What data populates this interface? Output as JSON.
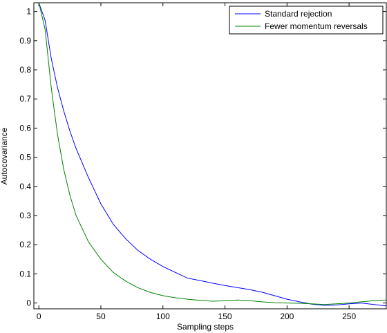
{
  "chart_data": {
    "type": "line",
    "xlabel": "Sampling steps",
    "ylabel": "Autocovariance",
    "xlim": [
      -4,
      280
    ],
    "ylim": [
      -0.02,
      1.03
    ],
    "xticks": [
      0,
      50,
      100,
      150,
      200,
      250
    ],
    "yticks": [
      0,
      0.1,
      0.2,
      0.3,
      0.4,
      0.5,
      0.6,
      0.7,
      0.8,
      0.9,
      1
    ],
    "ytick_labels": [
      "0",
      "0.1",
      "0.2",
      "0.3",
      "0.4",
      "0.5",
      "0.6",
      "0.7",
      "0.8",
      "0.9",
      "1"
    ],
    "grid": false,
    "legend_position": "top-right",
    "series": [
      {
        "name": "Standard rejection",
        "color": "#0000ff",
        "x": [
          0,
          5,
          10,
          15,
          20,
          25,
          30,
          40,
          50,
          60,
          70,
          80,
          90,
          100,
          110,
          120,
          130,
          140,
          150,
          160,
          170,
          180,
          190,
          200,
          210,
          220,
          230,
          240,
          250,
          260,
          270,
          280
        ],
        "y": [
          1.03,
          0.97,
          0.84,
          0.74,
          0.66,
          0.59,
          0.53,
          0.43,
          0.34,
          0.27,
          0.22,
          0.18,
          0.15,
          0.125,
          0.105,
          0.085,
          0.077,
          0.068,
          0.06,
          0.053,
          0.046,
          0.037,
          0.025,
          0.013,
          0.004,
          -0.004,
          -0.008,
          -0.007,
          -0.003,
          0.0,
          -0.005,
          -0.01
        ]
      },
      {
        "name": "Fewer momentum reversals",
        "color": "#008000",
        "x": [
          0,
          5,
          10,
          15,
          20,
          25,
          30,
          40,
          50,
          60,
          70,
          80,
          90,
          100,
          110,
          120,
          130,
          140,
          150,
          160,
          170,
          180,
          190,
          200,
          210,
          220,
          230,
          240,
          250,
          260,
          270,
          280
        ],
        "y": [
          1.03,
          0.94,
          0.74,
          0.58,
          0.46,
          0.37,
          0.3,
          0.21,
          0.15,
          0.105,
          0.075,
          0.052,
          0.036,
          0.025,
          0.018,
          0.013,
          0.009,
          0.006,
          0.008,
          0.01,
          0.008,
          0.004,
          0.001,
          0.0,
          -0.001,
          -0.003,
          -0.005,
          -0.003,
          0.0,
          0.004,
          0.008,
          0.01
        ]
      }
    ]
  }
}
